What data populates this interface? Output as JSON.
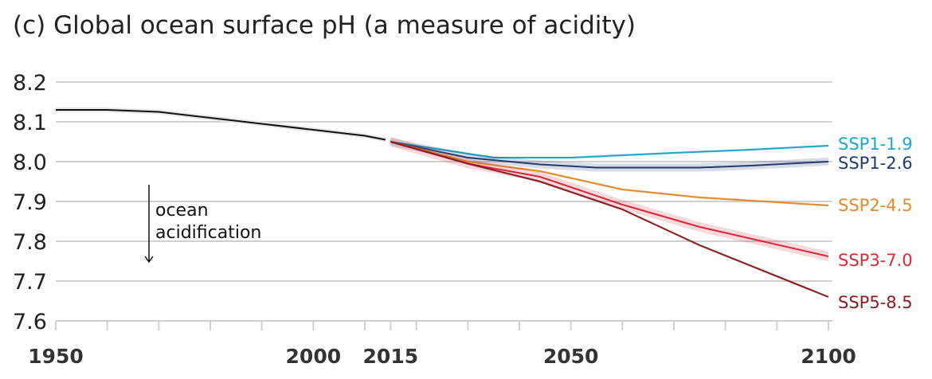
{
  "chart_data": {
    "type": "line",
    "title": "(c) Global ocean surface pH (a measure of acidity)",
    "xlim": [
      1950,
      2100
    ],
    "ylim": [
      7.6,
      8.2
    ],
    "x_tick_labels": [
      1950,
      2000,
      2015,
      2050,
      2100
    ],
    "x_minor_ticks": [
      1960,
      1970,
      1980,
      1990,
      2010,
      2020,
      2030,
      2040,
      2060,
      2070,
      2080,
      2090
    ],
    "y_ticks": [
      8.2,
      8.1,
      8.0,
      7.9,
      7.8,
      7.7,
      7.6
    ],
    "grid": true,
    "annotation": {
      "line1": "ocean",
      "line2": "acidification"
    },
    "historical": {
      "color": "#111111",
      "x": [
        1950,
        1960,
        1970,
        1980,
        1990,
        2000,
        2010,
        2014
      ],
      "y": [
        8.13,
        8.13,
        8.125,
        8.11,
        8.095,
        8.08,
        8.065,
        8.055
      ]
    },
    "series": [
      {
        "name": "SSP1-1.9",
        "color": "#1ea5c8",
        "x": [
          2015,
          2025,
          2035,
          2050,
          2060,
          2070,
          2085,
          2100
        ],
        "y": [
          8.05,
          8.03,
          8.01,
          8.01,
          8.016,
          8.022,
          8.03,
          8.04
        ],
        "band": 0.003
      },
      {
        "name": "SSP1-2.6",
        "color": "#1f3b6f",
        "x": [
          2015,
          2030,
          2044,
          2055,
          2075,
          2085,
          2100
        ],
        "y": [
          8.05,
          8.01,
          7.993,
          7.985,
          7.985,
          7.99,
          8.0
        ],
        "band": 0.01
      },
      {
        "name": "SSP2-4.5",
        "color": "#e08a2e",
        "x": [
          2015,
          2030,
          2044,
          2060,
          2075,
          2100
        ],
        "y": [
          8.05,
          8.0,
          7.976,
          7.93,
          7.91,
          7.89
        ],
        "band": 0.003
      },
      {
        "name": "SSP3-7.0",
        "color": "#d6293a",
        "x": [
          2015,
          2030,
          2044,
          2060,
          2075,
          2100
        ],
        "y": [
          8.05,
          7.995,
          7.962,
          7.892,
          7.836,
          7.762
        ],
        "band": 0.012
      },
      {
        "name": "SSP5-8.5",
        "color": "#8a1c22",
        "x": [
          2015,
          2030,
          2044,
          2060,
          2075,
          2100
        ],
        "y": [
          8.05,
          7.995,
          7.95,
          7.88,
          7.79,
          7.66
        ],
        "band": 0.003
      }
    ]
  }
}
